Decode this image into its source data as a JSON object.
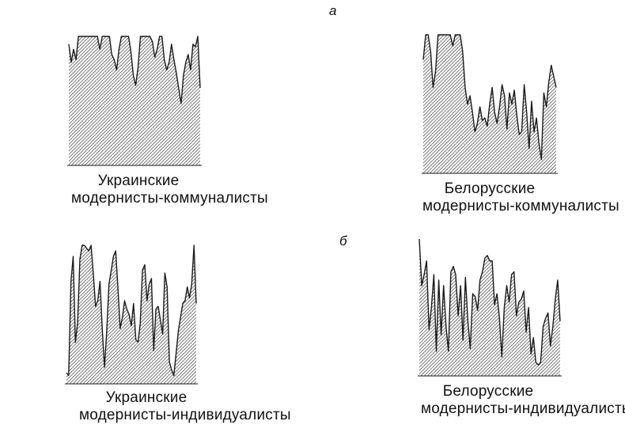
{
  "labels": {
    "panel_a": "а",
    "panel_b": "б"
  },
  "colors": {
    "ink": "#1a1a1a",
    "hatch": "#333333",
    "background": "#ffffff"
  },
  "chart_data": [
    {
      "type": "area",
      "caption": [
        "Украинские",
        "модернисты-коммуналисты"
      ],
      "panel": "а",
      "ylim": [
        0,
        100
      ],
      "values": [
        94,
        80,
        90,
        82,
        100,
        100,
        100,
        100,
        100,
        100,
        100,
        100,
        100,
        90,
        100,
        100,
        100,
        100,
        86,
        82,
        74,
        90,
        100,
        100,
        100,
        100,
        88,
        70,
        62,
        76,
        100,
        100,
        100,
        100,
        100,
        96,
        84,
        90,
        100,
        100,
        82,
        74,
        80,
        94,
        82,
        72,
        60,
        48,
        70,
        80,
        86,
        74,
        94,
        92,
        100,
        60
      ]
    },
    {
      "type": "area",
      "caption": [
        "Белорусские",
        "модернисты-коммуналисты"
      ],
      "panel": "а",
      "ylim": [
        0,
        100
      ],
      "values": [
        82,
        100,
        100,
        88,
        62,
        74,
        100,
        100,
        100,
        100,
        100,
        100,
        92,
        100,
        100,
        100,
        88,
        62,
        50,
        56,
        44,
        30,
        36,
        48,
        38,
        40,
        34,
        50,
        62,
        44,
        36,
        48,
        64,
        56,
        32,
        58,
        50,
        60,
        42,
        28,
        30,
        64,
        44,
        18,
        52,
        30,
        40,
        22,
        10,
        58,
        48,
        66,
        78,
        70,
        62
      ]
    },
    {
      "type": "area",
      "caption": [
        "Украинские",
        "модернисты-индивидуалисты"
      ],
      "panel": "б",
      "ylim": [
        0,
        100
      ],
      "values": [
        8,
        6,
        74,
        92,
        30,
        44,
        90,
        100,
        100,
        98,
        96,
        100,
        80,
        56,
        60,
        74,
        40,
        12,
        38,
        72,
        82,
        92,
        96,
        70,
        40,
        48,
        60,
        54,
        50,
        42,
        58,
        32,
        30,
        44,
        82,
        86,
        60,
        72,
        76,
        24,
        54,
        56,
        46,
        36,
        80,
        70,
        16,
        10,
        6,
        22,
        38,
        48,
        58,
        60,
        70,
        62,
        72,
        100,
        58
      ]
    },
    {
      "type": "area",
      "caption": [
        "Белорусские",
        "модернисты-индивидуалисты"
      ],
      "panel": "б",
      "ylim": [
        0,
        100
      ],
      "values": [
        100,
        66,
        74,
        84,
        34,
        50,
        74,
        18,
        70,
        30,
        66,
        36,
        18,
        76,
        80,
        74,
        44,
        66,
        26,
        72,
        40,
        20,
        60,
        58,
        48,
        70,
        76,
        86,
        88,
        84,
        84,
        52,
        60,
        42,
        14,
        50,
        66,
        54,
        74,
        76,
        44,
        54,
        56,
        62,
        32,
        50,
        16,
        28,
        10,
        8,
        10,
        36,
        42,
        46,
        22,
        36,
        56,
        70,
        40
      ]
    }
  ]
}
